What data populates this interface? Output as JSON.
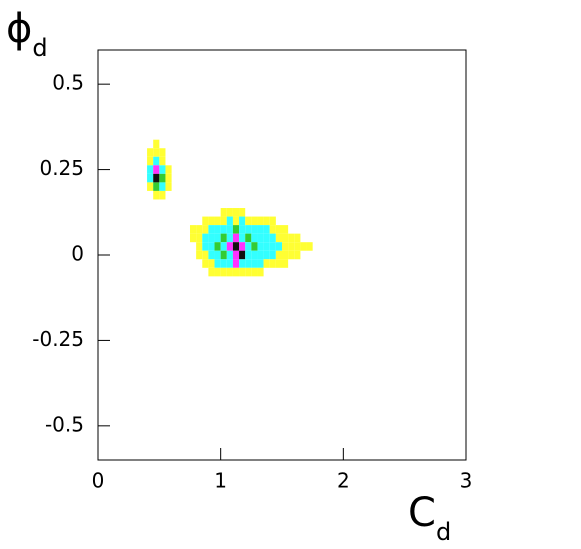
{
  "chart_data": {
    "type": "hist2d",
    "xlabel": "C",
    "xlabel_sub": "d",
    "ylabel": "ϕ",
    "ylabel_sub": "d",
    "xlim": [
      0,
      3
    ],
    "xticks": [
      0,
      1,
      2,
      3
    ],
    "ylim": [
      -0.6,
      0.6
    ],
    "yticks": [
      -0.5,
      -0.25,
      0,
      0.25,
      0.5
    ],
    "bin_width": 0.05,
    "bin_height": 0.025,
    "colors": [
      "#ffff33",
      "#33ffff",
      "#33cc33",
      "#ff33ff",
      "#111111"
    ],
    "x": [
      0.475,
      0.425,
      0.475,
      0.525,
      0.425,
      0.475,
      0.525,
      0.425,
      0.475,
      0.525,
      0.575,
      0.425,
      0.475,
      0.525,
      0.575,
      0.425,
      0.475,
      0.525,
      0.575,
      0.475,
      0.525,
      1.025,
      1.075,
      1.125,
      1.175,
      0.875,
      0.925,
      0.975,
      1.025,
      1.075,
      1.125,
      1.175,
      1.225,
      1.275,
      1.325,
      1.375,
      1.425,
      0.775,
      0.825,
      0.875,
      0.925,
      0.975,
      1.025,
      1.075,
      1.125,
      1.175,
      1.225,
      1.275,
      1.325,
      1.375,
      1.425,
      1.475,
      1.525,
      0.775,
      0.825,
      0.875,
      0.925,
      0.975,
      1.025,
      1.075,
      1.125,
      1.175,
      1.225,
      1.275,
      1.325,
      1.375,
      1.425,
      1.475,
      1.525,
      1.575,
      1.625,
      0.825,
      0.875,
      0.925,
      0.975,
      1.025,
      1.075,
      1.125,
      1.175,
      1.225,
      1.275,
      1.325,
      1.375,
      1.425,
      1.475,
      1.525,
      1.575,
      1.625,
      1.675,
      1.725,
      0.825,
      0.875,
      0.925,
      0.975,
      1.025,
      1.075,
      1.125,
      1.175,
      1.225,
      1.275,
      1.325,
      1.375,
      1.425,
      1.475,
      1.525,
      1.575,
      1.625,
      0.875,
      0.925,
      0.975,
      1.025,
      1.075,
      1.125,
      1.175,
      1.225,
      1.275,
      1.325,
      1.375,
      1.425,
      1.475,
      1.525,
      0.925,
      0.975,
      1.025,
      1.075,
      1.125,
      1.175,
      1.225,
      1.275,
      1.325
    ],
    "y": [
      0.325,
      0.3,
      0.3,
      0.3,
      0.275,
      0.275,
      0.275,
      0.25,
      0.25,
      0.25,
      0.25,
      0.225,
      0.225,
      0.225,
      0.225,
      0.2,
      0.2,
      0.2,
      0.2,
      0.175,
      0.175,
      0.125,
      0.125,
      0.125,
      0.125,
      0.1,
      0.1,
      0.1,
      0.1,
      0.1,
      0.1,
      0.1,
      0.1,
      0.1,
      0.1,
      0.1,
      0.1,
      0.075,
      0.075,
      0.075,
      0.075,
      0.075,
      0.075,
      0.075,
      0.075,
      0.075,
      0.075,
      0.075,
      0.075,
      0.075,
      0.075,
      0.075,
      0.075,
      0.05,
      0.05,
      0.05,
      0.05,
      0.05,
      0.05,
      0.05,
      0.05,
      0.05,
      0.05,
      0.05,
      0.05,
      0.05,
      0.05,
      0.05,
      0.05,
      0.05,
      0.05,
      0.025,
      0.025,
      0.025,
      0.025,
      0.025,
      0.025,
      0.025,
      0.025,
      0.025,
      0.025,
      0.025,
      0.025,
      0.025,
      0.025,
      0.025,
      0.025,
      0.025,
      0.025,
      0.025,
      0,
      0,
      0,
      0,
      0,
      0,
      0,
      0,
      0,
      0,
      0,
      0,
      0,
      0,
      0,
      0,
      0,
      -0.025,
      -0.025,
      -0.025,
      -0.025,
      -0.025,
      -0.025,
      -0.025,
      -0.025,
      -0.025,
      -0.025,
      -0.025,
      -0.025,
      -0.025,
      -0.025,
      -0.05,
      -0.05,
      -0.05,
      -0.05,
      -0.05,
      -0.05,
      -0.05,
      -0.05,
      -0.05
    ],
    "values": [
      1,
      1,
      1,
      1,
      1,
      2,
      1,
      2,
      4,
      2,
      1,
      2,
      5,
      3,
      1,
      1,
      3,
      2,
      1,
      1,
      1,
      1,
      1,
      1,
      1,
      1,
      1,
      1,
      1,
      2,
      1,
      2,
      1,
      1,
      1,
      1,
      1,
      1,
      1,
      1,
      2,
      2,
      2,
      2,
      3,
      2,
      2,
      2,
      2,
      2,
      1,
      1,
      1,
      1,
      1,
      2,
      2,
      2,
      3,
      2,
      4,
      2,
      3,
      2,
      2,
      2,
      2,
      1,
      1,
      1,
      1,
      1,
      2,
      2,
      3,
      2,
      4,
      5,
      4,
      2,
      3,
      2,
      2,
      2,
      2,
      1,
      1,
      1,
      1,
      1,
      1,
      1,
      2,
      2,
      3,
      2,
      4,
      5,
      2,
      2,
      2,
      2,
      2,
      1,
      1,
      1,
      1,
      1,
      1,
      2,
      2,
      2,
      4,
      2,
      2,
      2,
      2,
      1,
      1,
      1,
      1,
      1,
      1,
      1,
      1,
      1,
      1,
      1,
      1,
      1
    ]
  }
}
